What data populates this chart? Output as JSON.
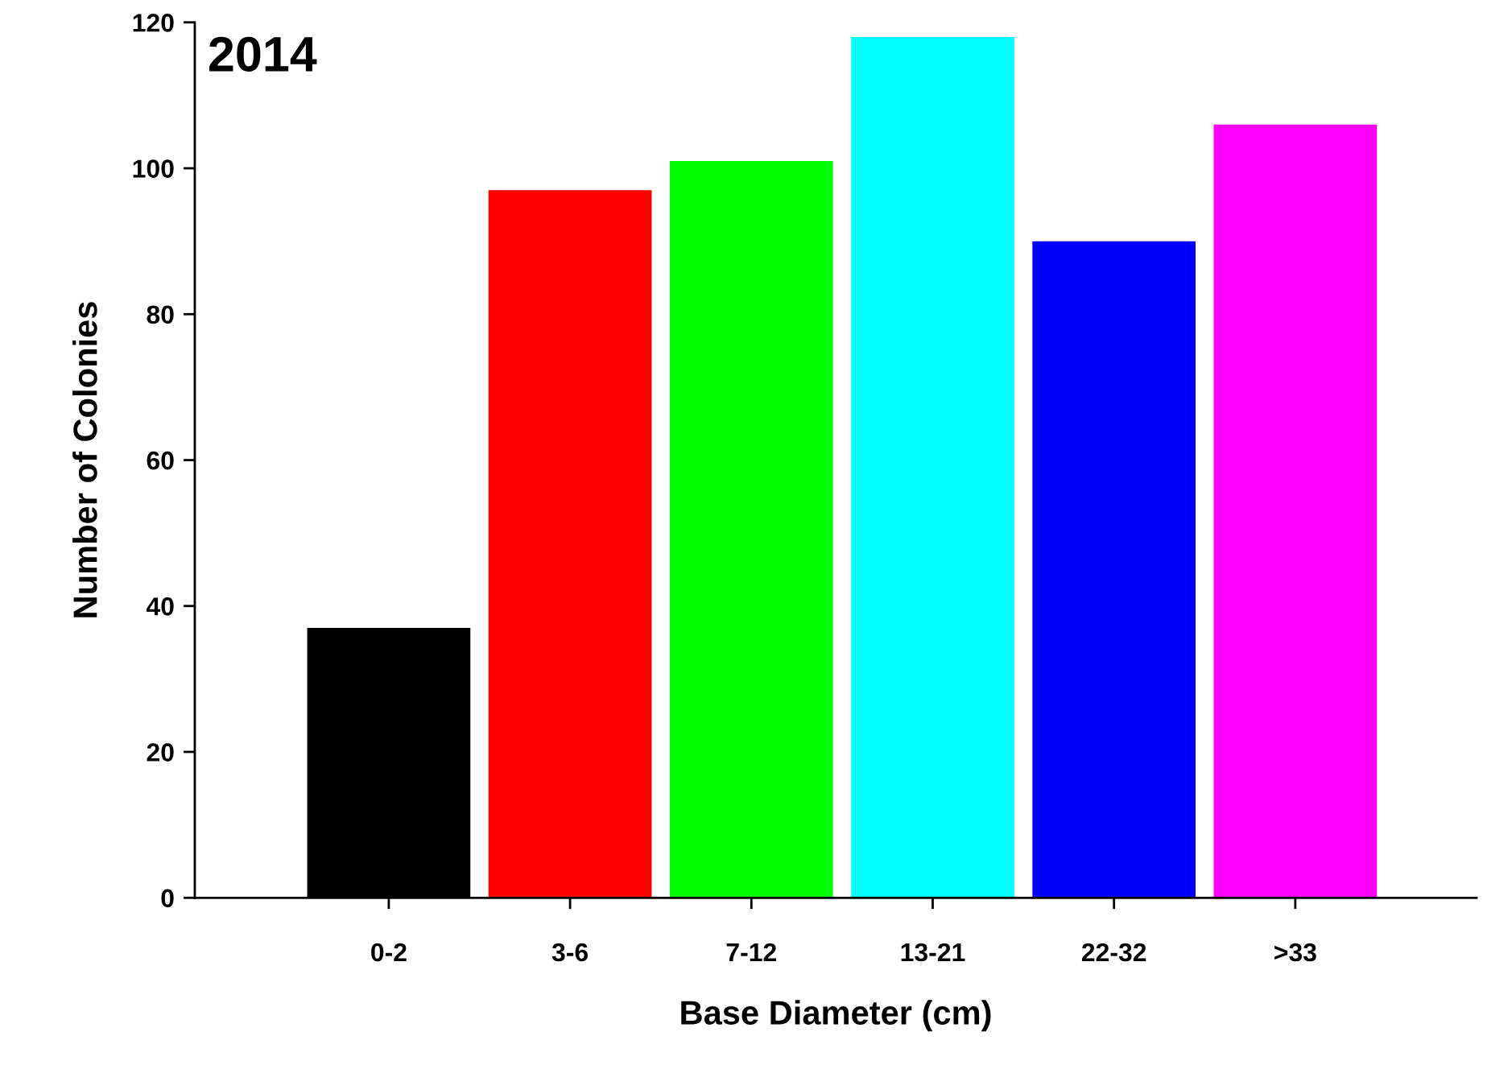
{
  "chart_data": {
    "type": "bar",
    "categories": [
      "0-2",
      "3-6",
      "7-12",
      "13-21",
      "22-32",
      ">33"
    ],
    "values": [
      37,
      97,
      101,
      118,
      90,
      106
    ],
    "colors": [
      "#000000",
      "#ff0000",
      "#00ff00",
      "#00ffff",
      "#0000ff",
      "#ff00ff"
    ],
    "xlabel": "Base Diameter (cm)",
    "ylabel": "Number of Colonies",
    "annotations": [
      "2014"
    ],
    "ylim": [
      0,
      120
    ],
    "yticks": [
      0,
      20,
      40,
      60,
      80,
      100,
      120
    ],
    "grid": false,
    "legend": false
  }
}
